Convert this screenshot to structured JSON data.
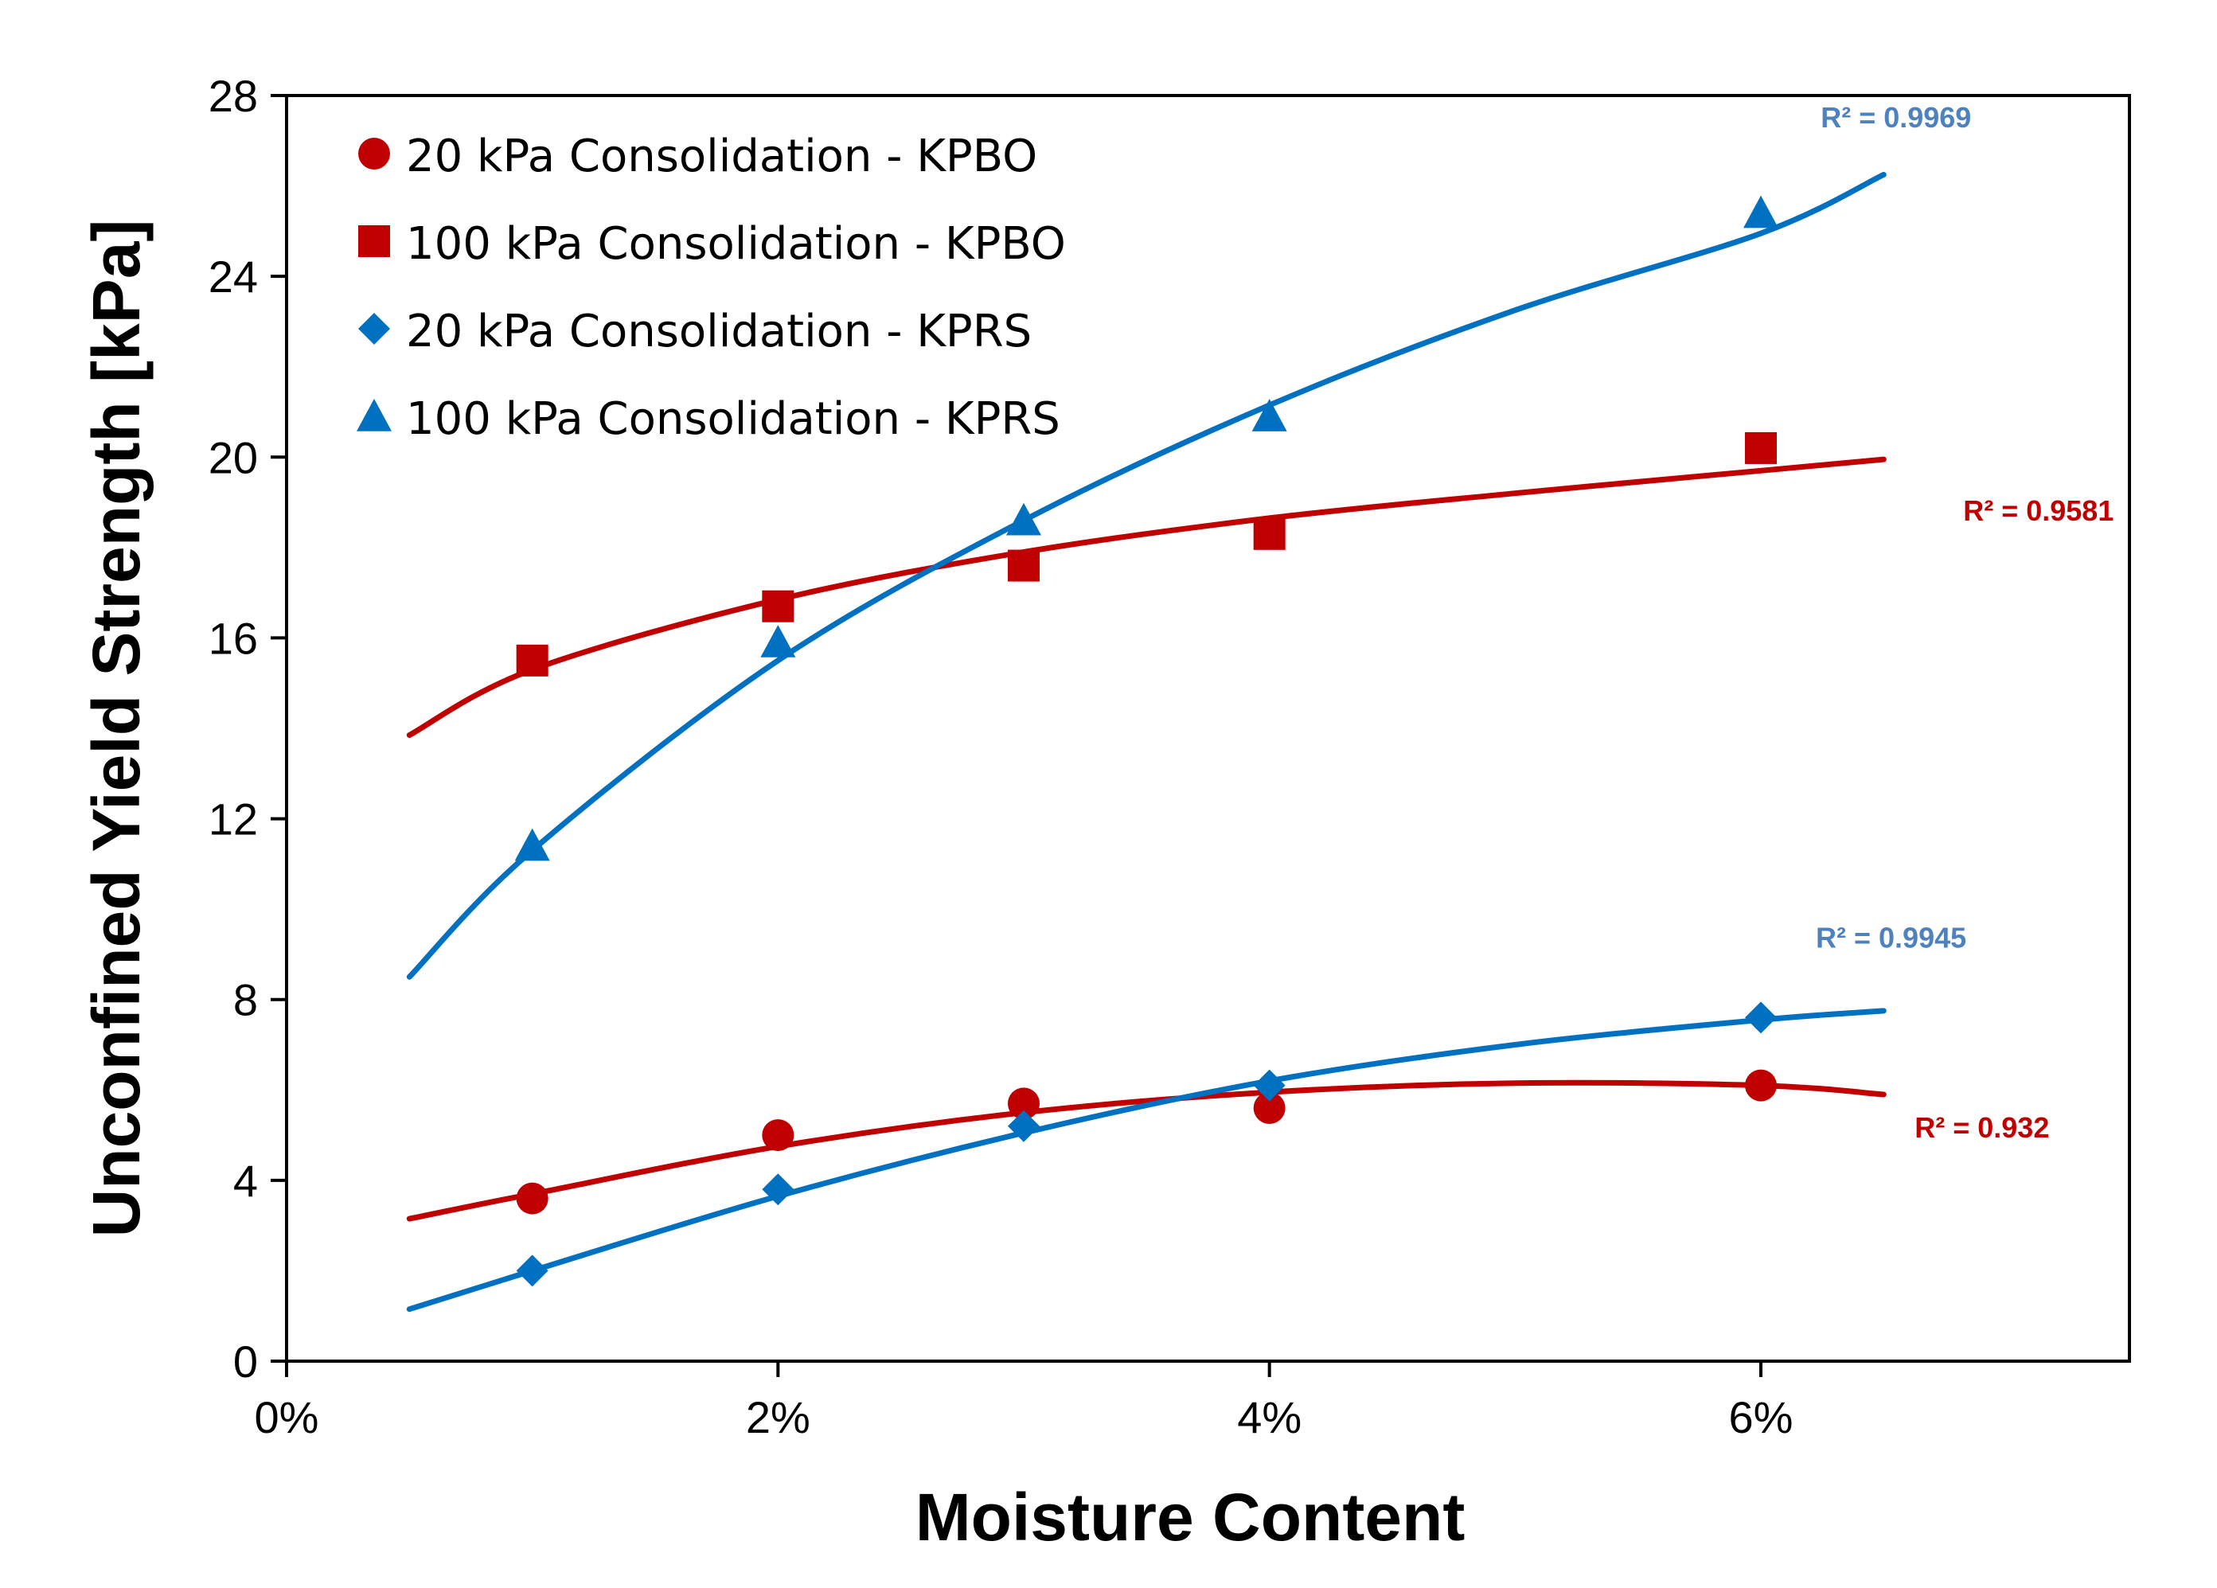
{
  "chart_data": {
    "type": "scatter",
    "title": "",
    "xlabel": "Moisture Content",
    "ylabel": "Unconfined Yield Strength [kPa]",
    "xlim": [
      0,
      0.075
    ],
    "ylim": [
      0,
      28
    ],
    "x_ticks": [
      0,
      0.02,
      0.04,
      0.06
    ],
    "x_tick_labels": [
      "0%",
      "2%",
      "4%",
      "6%"
    ],
    "y_ticks": [
      0,
      4,
      8,
      12,
      16,
      20,
      24,
      28
    ],
    "y_tick_labels": [
      "0",
      "4",
      "8",
      "12",
      "16",
      "20",
      "24",
      "28"
    ],
    "grid": false,
    "legend_position": "top-left",
    "series": [
      {
        "name": "20 kPa Consolidation - KPBO",
        "marker": "circle",
        "color": "#c00000",
        "x": [
          0.01,
          0.02,
          0.03,
          0.04,
          0.06
        ],
        "y": [
          3.6,
          5.0,
          5.7,
          5.6,
          6.1
        ],
        "trendline": {
          "x": [
            0.005,
            0.01,
            0.02,
            0.03,
            0.04,
            0.05,
            0.06,
            0.065
          ],
          "y": [
            3.15,
            3.7,
            4.75,
            5.5,
            5.95,
            6.15,
            6.1,
            5.9
          ]
        },
        "r_squared": "R² = 0.932"
      },
      {
        "name": "100 kPa Consolidation - KPBO",
        "marker": "square",
        "color": "#c00000",
        "x": [
          0.01,
          0.02,
          0.03,
          0.04,
          0.06
        ],
        "y": [
          15.5,
          16.7,
          17.6,
          18.3,
          20.2
        ],
        "trendline": {
          "x": [
            0.005,
            0.01,
            0.02,
            0.03,
            0.04,
            0.05,
            0.06,
            0.065
          ],
          "y": [
            13.85,
            15.3,
            16.85,
            17.9,
            18.65,
            19.2,
            19.7,
            19.95
          ]
        },
        "r_squared": "R² = 0.9581"
      },
      {
        "name": "20 kPa Consolidation - KPRS",
        "marker": "diamond",
        "color": "#0070c0",
        "x": [
          0.01,
          0.02,
          0.03,
          0.04,
          0.06
        ],
        "y": [
          2.0,
          3.8,
          5.2,
          6.1,
          7.6
        ],
        "trendline": {
          "x": [
            0.005,
            0.01,
            0.02,
            0.03,
            0.04,
            0.05,
            0.06,
            0.065
          ],
          "y": [
            1.15,
            2.0,
            3.65,
            5.05,
            6.2,
            7.0,
            7.55,
            7.75
          ]
        },
        "r_squared": "R² = 0.9945"
      },
      {
        "name": "100 kPa Consolidation - KPRS",
        "marker": "triangle",
        "color": "#0070c0",
        "x": [
          0.01,
          0.02,
          0.03,
          0.04,
          0.06
        ],
        "y": [
          11.4,
          15.9,
          18.6,
          20.9,
          25.4
        ],
        "trendline": {
          "x": [
            0.005,
            0.01,
            0.02,
            0.03,
            0.04,
            0.05,
            0.06,
            0.065
          ],
          "y": [
            8.5,
            11.3,
            15.5,
            18.6,
            21.15,
            23.25,
            24.95,
            26.25
          ]
        },
        "r_squared": "R² = 0.9969"
      }
    ],
    "annotations": [
      {
        "text": "R² = 0.9969",
        "color": "#4f81bd",
        "anchor_x": 0.0655,
        "anchor_y": 27.3
      },
      {
        "text": "R² = 0.9581",
        "color": "#c00000",
        "anchor_x": 0.0713,
        "anchor_y": 18.6
      },
      {
        "text": "R² = 0.9945",
        "color": "#4f81bd",
        "anchor_x": 0.0653,
        "anchor_y": 9.15
      },
      {
        "text": "R² = 0.932",
        "color": "#c00000",
        "anchor_x": 0.069,
        "anchor_y": 4.95
      }
    ]
  }
}
